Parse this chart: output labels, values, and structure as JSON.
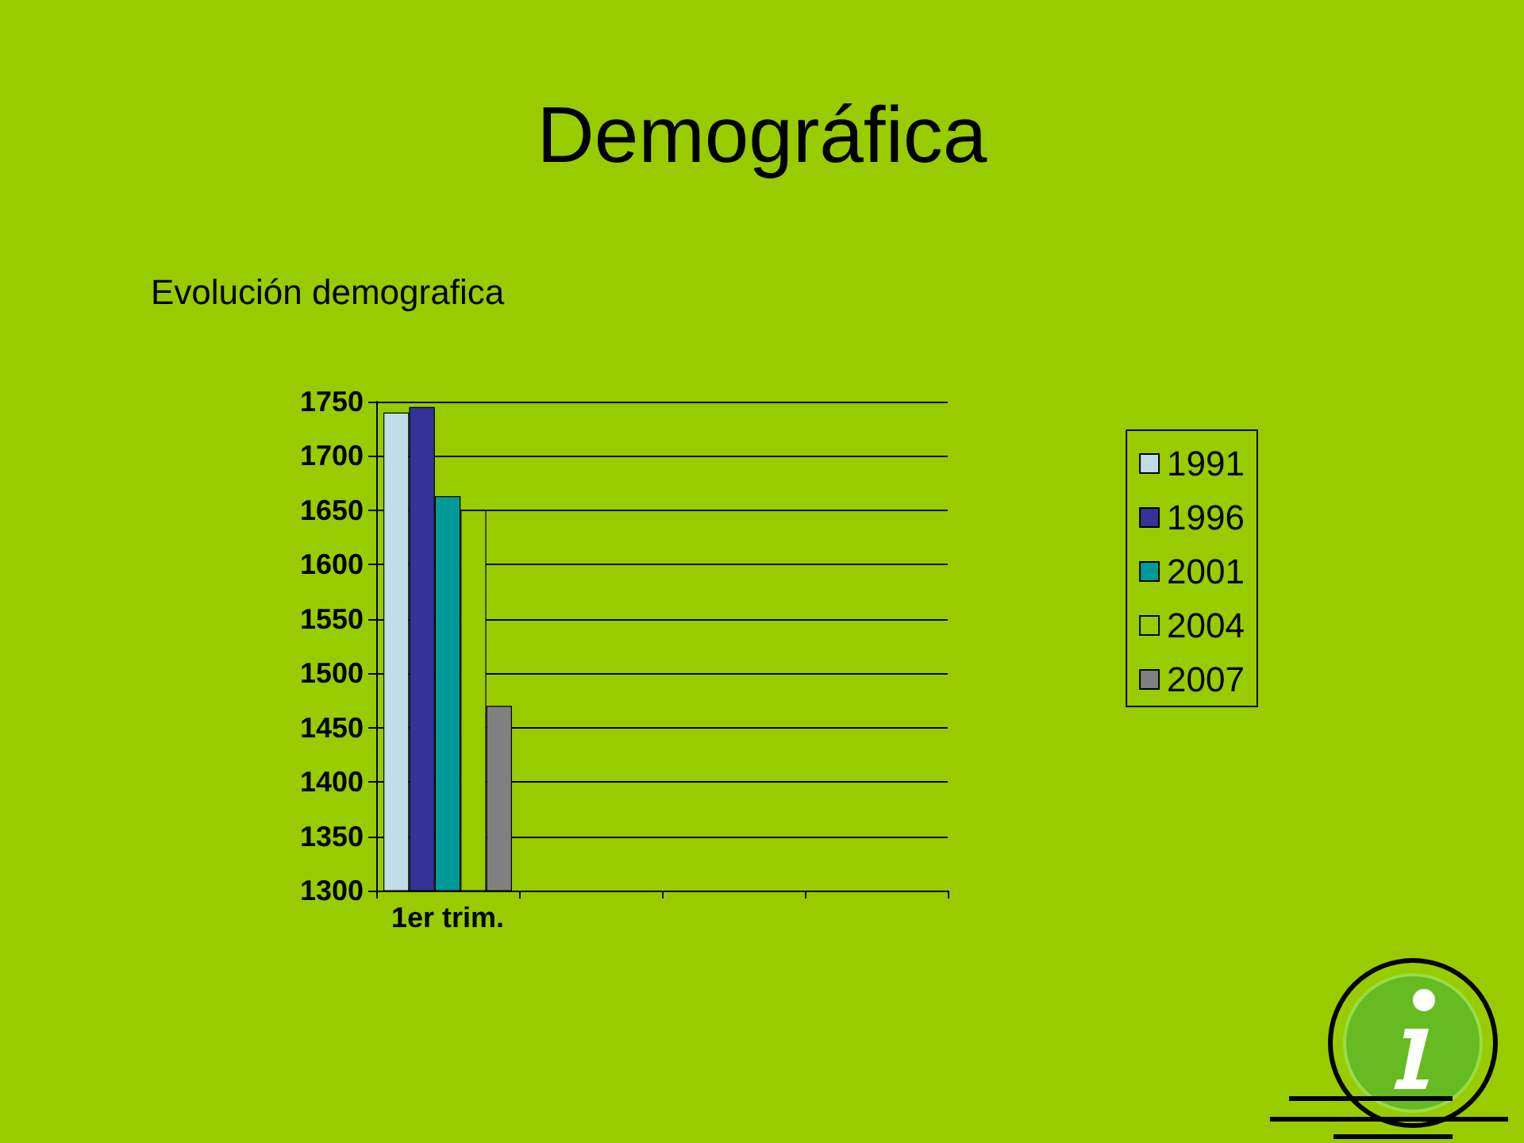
{
  "chart_data": {
    "type": "bar",
    "title": "Demográfica",
    "subtitle": "Evolución demografica",
    "categories": [
      "1er trim.",
      null,
      null,
      null
    ],
    "series": [
      {
        "name": "1991",
        "color": "#c0dce6",
        "values": [
          1740,
          null,
          null,
          null
        ]
      },
      {
        "name": "1996",
        "color": "#333399",
        "values": [
          1745,
          null,
          null,
          null
        ]
      },
      {
        "name": "2001",
        "color": "#009999",
        "values": [
          1663,
          null,
          null,
          null
        ]
      },
      {
        "name": "2004",
        "color": "#99cc00",
        "values": [
          1650,
          null,
          null,
          null
        ]
      },
      {
        "name": "2007",
        "color": "#808080",
        "values": [
          1470,
          null,
          null,
          null
        ]
      }
    ],
    "ylim": [
      1300,
      1750
    ],
    "yticks": [
      1300,
      1350,
      1400,
      1450,
      1500,
      1550,
      1600,
      1650,
      1700,
      1750
    ],
    "grid": "y",
    "legend": "right"
  }
}
